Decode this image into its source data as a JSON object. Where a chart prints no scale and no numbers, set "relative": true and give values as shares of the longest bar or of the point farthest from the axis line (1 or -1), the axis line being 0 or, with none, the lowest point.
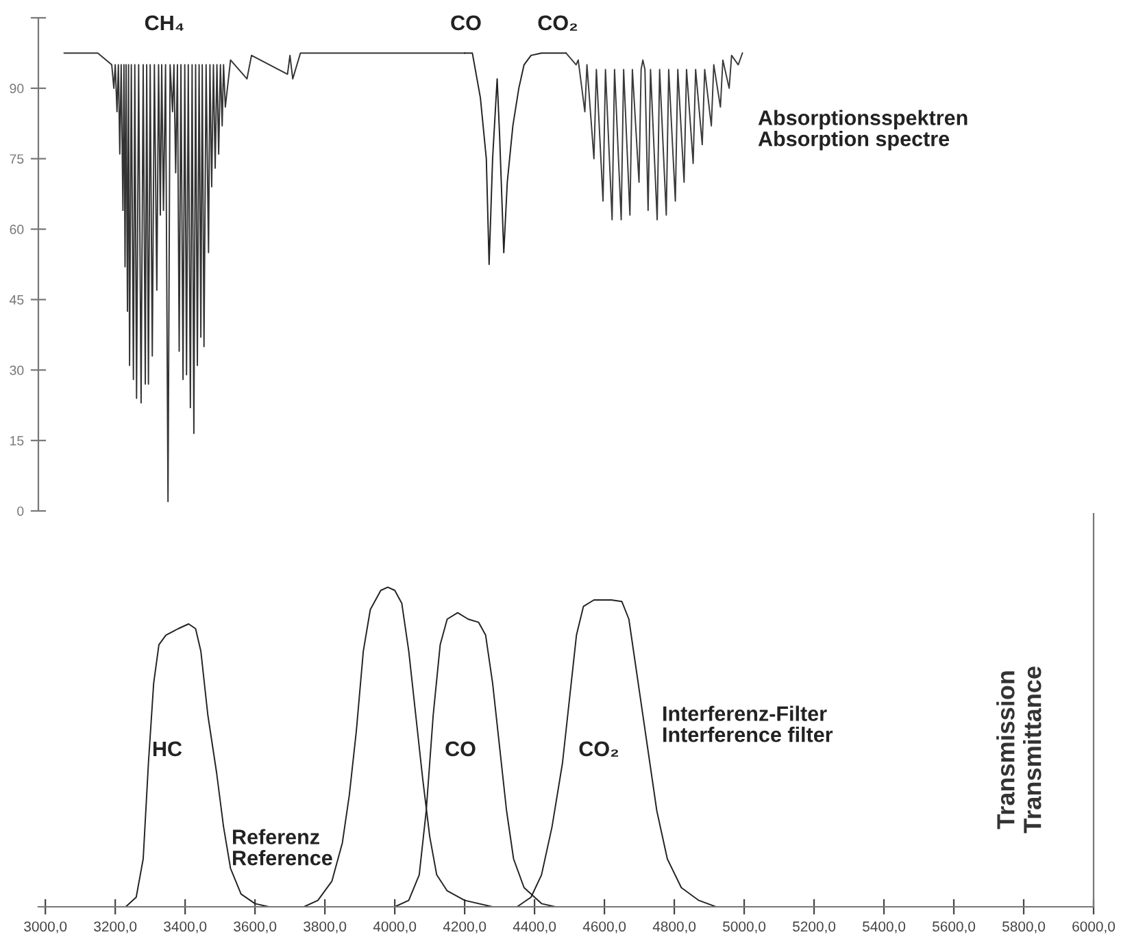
{
  "chart_data": [
    {
      "type": "line",
      "xlim": [
        2980,
        6000
      ],
      "ylim": [
        0,
        105
      ],
      "yticks": [
        0,
        15,
        30,
        45,
        60,
        75,
        90,
        {
          "value": 105,
          "label": null
        }
      ],
      "tick_labels": "y",
      "grid": false,
      "marker": "none",
      "line_style": "solid",
      "annotations": [
        "Absorptionsspektren\nAbsorption spectre",
        "CH₄",
        "CO",
        "CO₂"
      ],
      "series": [
        {
          "color": "#333333",
          "x": [
            3054,
            3150,
            3190,
            3196,
            3200,
            3205,
            3209,
            3213,
            3217,
            3222,
            3225,
            3228,
            3231,
            3235,
            3238,
            3241,
            3246,
            3252,
            3256,
            3261,
            3267,
            3274,
            3280,
            3286,
            3290,
            3295,
            3300,
            3306,
            3312,
            3319,
            3324,
            3329,
            3333,
            3338,
            3344,
            3351,
            3357,
            3364,
            3368,
            3373,
            3378,
            3383,
            3388,
            3394,
            3399,
            3404,
            3409,
            3415,
            3420,
            3425,
            3430,
            3435,
            3440,
            3445,
            3449,
            3454,
            3460,
            3467,
            3471,
            3476,
            3481,
            3486,
            3491,
            3496,
            3501,
            3506,
            3510,
            3515,
            3530,
            3577,
            3590,
            3693,
            3700,
            3708,
            3730,
            4200
          ],
          "values": [
            97.5,
            97.5,
            95,
            90,
            95,
            85,
            95,
            76,
            95,
            64,
            95,
            52,
            95,
            42.5,
            95,
            31,
            95,
            28,
            95,
            24,
            95,
            23,
            95,
            27,
            95,
            27,
            95,
            33,
            95,
            47,
            95,
            63,
            95,
            64,
            95,
            2,
            95,
            85,
            95,
            72,
            95,
            34,
            95,
            28,
            95,
            29,
            95,
            22,
            95,
            16.5,
            95,
            31,
            95,
            37,
            95,
            35,
            95,
            55,
            95,
            69,
            95,
            73,
            95,
            76,
            95,
            82,
            95,
            86,
            96,
            92,
            97,
            93,
            97,
            92,
            97.5,
            97.5
          ]
        },
        {
          "color": "#222222",
          "x": [
            4200,
            4222,
            4245,
            4262,
            4270,
            4280,
            4293,
            4300,
            4312,
            4322,
            4338,
            4355,
            4370,
            4390,
            4420,
            4490
          ],
          "values": [
            97.5,
            97.5,
            88,
            75,
            52.5,
            75,
            92,
            80,
            55,
            70,
            82,
            90,
            95,
            97,
            97.5,
            97.5
          ]
        },
        {
          "color": "#3a3a3a",
          "x": [
            4490,
            4519,
            4525,
            4544,
            4550,
            4570,
            4577,
            4596,
            4603,
            4622,
            4629,
            4648,
            4655,
            4673,
            4680,
            4699,
            4705,
            4710,
            4716,
            4725,
            4732,
            4751,
            4758,
            4777,
            4784,
            4803,
            4810,
            4828,
            4835,
            4854,
            4861,
            4880,
            4887,
            4906,
            4913,
            4932,
            4939,
            4957,
            4964,
            4983,
            4995
          ],
          "values": [
            97.5,
            95,
            96,
            85,
            95,
            75,
            94,
            66,
            94,
            62,
            94,
            62,
            94,
            63,
            94,
            70,
            94,
            96,
            94,
            64,
            94,
            62,
            94,
            63,
            94,
            66,
            94,
            70,
            94,
            74,
            94,
            78,
            94,
            82,
            95,
            86,
            96,
            90,
            97,
            95,
            97.5
          ]
        }
      ]
    },
    {
      "type": "line",
      "relative": true,
      "ylabel": "Transmission\nTransmittance",
      "xlim": [
        2980,
        6000
      ],
      "tick_labels": "x",
      "grid": false,
      "marker": "none",
      "line_style": "solid",
      "xticks": [
        {
          "value": 3000,
          "label": "3000,0"
        },
        {
          "value": 3200,
          "label": "3200,0"
        },
        {
          "value": 3400,
          "label": "3400,0"
        },
        {
          "value": 3600,
          "label": "3600,0"
        },
        {
          "value": 3800,
          "label": "3800,0"
        },
        {
          "value": 4000,
          "label": "4000,0"
        },
        {
          "value": 4200,
          "label": "4200,0"
        },
        {
          "value": 4400,
          "label": "4400,0"
        },
        {
          "value": 4600,
          "label": "4600,0"
        },
        {
          "value": 4800,
          "label": "4800,0"
        },
        {
          "value": 5000,
          "label": "5000,0"
        },
        {
          "value": 5200,
          "label": "5200,0"
        },
        {
          "value": 5400,
          "label": "5400,0"
        },
        {
          "value": 5600,
          "label": "5600,0"
        },
        {
          "value": 5800,
          "label": "5800,0"
        },
        {
          "value": 6000,
          "label": "6000,0"
        }
      ],
      "annotations": [
        "Interferenz-Filter\nInterference filter",
        "HC",
        "Referenz\nReference",
        "CO",
        "CO₂"
      ],
      "series": [
        {
          "color": "#222222",
          "x": [
            3230,
            3260,
            3280,
            3295,
            3310,
            3325,
            3345,
            3380,
            3410,
            3430,
            3445,
            3465,
            3490,
            3510,
            3530,
            3560,
            3600,
            3640
          ],
          "values": [
            0,
            0.03,
            0.15,
            0.45,
            0.7,
            0.82,
            0.85,
            0.87,
            0.885,
            0.87,
            0.8,
            0.6,
            0.42,
            0.25,
            0.12,
            0.04,
            0.01,
            0
          ]
        },
        {
          "color": "#222222",
          "x": [
            3740,
            3780,
            3820,
            3850,
            3870,
            3890,
            3910,
            3930,
            3960,
            3980,
            4000,
            4020,
            4040,
            4060,
            4080,
            4100,
            4120,
            4150,
            4200,
            4280
          ],
          "values": [
            0,
            0.02,
            0.08,
            0.2,
            0.35,
            0.55,
            0.8,
            0.93,
            0.99,
            1.0,
            0.99,
            0.95,
            0.8,
            0.6,
            0.4,
            0.22,
            0.1,
            0.05,
            0.02,
            0
          ]
        },
        {
          "color": "#222222",
          "x": [
            4000,
            4040,
            4070,
            4090,
            4110,
            4130,
            4150,
            4180,
            4210,
            4240,
            4260,
            4280,
            4300,
            4320,
            4340,
            4370,
            4420,
            4460
          ],
          "values": [
            0,
            0.02,
            0.1,
            0.3,
            0.6,
            0.82,
            0.9,
            0.92,
            0.9,
            0.89,
            0.85,
            0.7,
            0.5,
            0.3,
            0.15,
            0.06,
            0.01,
            0
          ]
        },
        {
          "color": "#222222",
          "x": [
            4350,
            4390,
            4420,
            4450,
            4480,
            4500,
            4520,
            4540,
            4570,
            4620,
            4650,
            4670,
            4690,
            4710,
            4730,
            4750,
            4780,
            4820,
            4870,
            4920
          ],
          "values": [
            0,
            0.03,
            0.1,
            0.25,
            0.45,
            0.65,
            0.85,
            0.94,
            0.96,
            0.96,
            0.955,
            0.9,
            0.75,
            0.6,
            0.45,
            0.3,
            0.15,
            0.06,
            0.02,
            0
          ]
        }
      ]
    }
  ]
}
